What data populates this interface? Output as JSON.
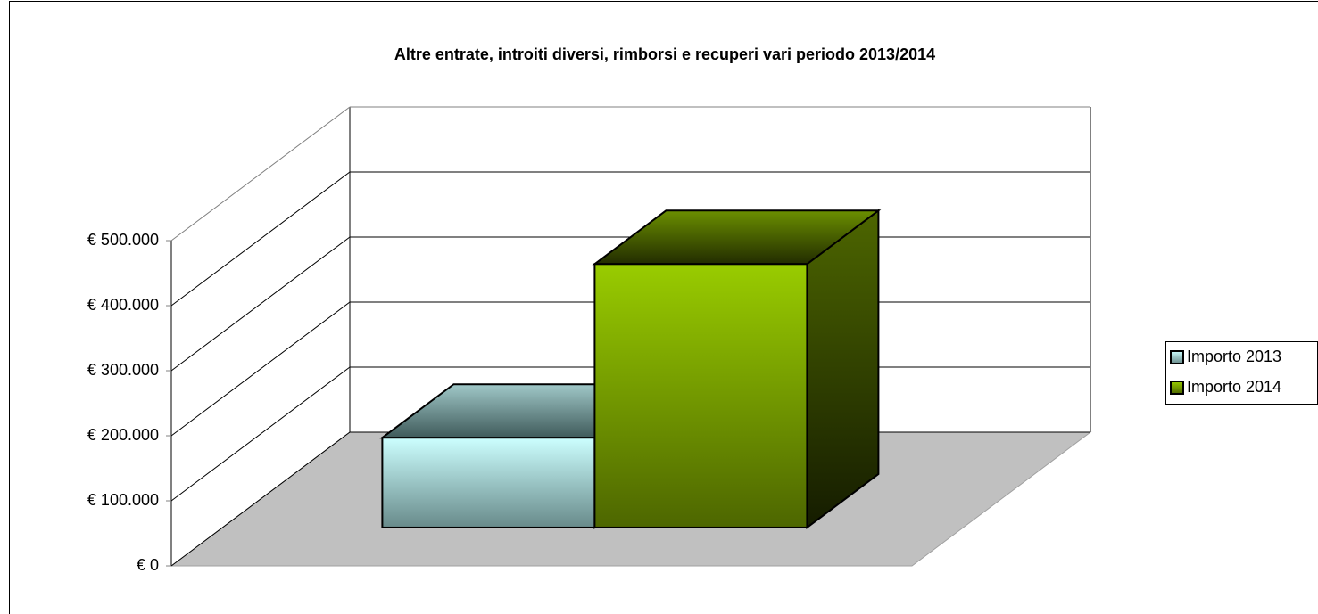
{
  "chart_data": {
    "type": "bar3d",
    "title": "Altre entrate, introiti diversi, rimborsi e recuperi vari  periodo 2013/2014",
    "series": [
      {
        "name": "Importo 2013",
        "color": "#9fd3d3",
        "values": [
          138000
        ]
      },
      {
        "name": "Importo 2014",
        "color": "#86b300",
        "values": [
          405000
        ]
      }
    ],
    "ylim": [
      0,
      500000
    ],
    "yticks": [
      {
        "value": 0,
        "label": "€ 0"
      },
      {
        "value": 100000,
        "label": "€ 100.000"
      },
      {
        "value": 200000,
        "label": "€ 200.000"
      },
      {
        "value": 300000,
        "label": "€ 300.000"
      },
      {
        "value": 400000,
        "label": "€ 400.000"
      },
      {
        "value": 500000,
        "label": "€ 500.000"
      }
    ],
    "grid": true,
    "legend": "right"
  }
}
